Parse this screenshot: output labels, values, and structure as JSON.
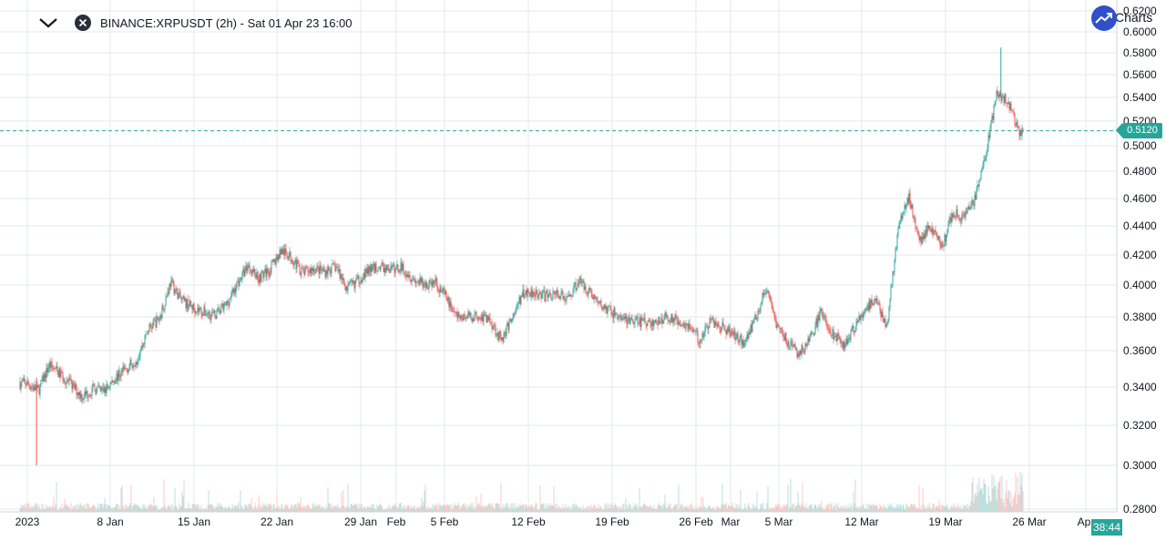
{
  "header": {
    "title": "BINANCE:XRPUSDT (2h) - Sat 01 Apr 23 16:00",
    "collapse_icon": "chevron-down-icon",
    "close_icon": "close-circle-icon"
  },
  "brand": {
    "text": "Charts",
    "logo_icon": "trend-up-logo-icon"
  },
  "price_tag": "0.5120",
  "timer": "38:44",
  "colors": {
    "up": "#26a69a",
    "down": "#ef5350",
    "up_volume": "#b2dfdb",
    "down_volume": "#f8c6c4",
    "grid": "#e6e7ea",
    "brand": "#3050c8"
  },
  "chart_data": {
    "type": "candlestick",
    "symbol": "BINANCE:XRPUSDT",
    "interval": "2h",
    "y_scale": "log",
    "ylim": [
      0.278,
      0.62
    ],
    "grid": true,
    "y_ticks": [
      "0.6200",
      "0.6000",
      "0.5800",
      "0.5600",
      "0.5400",
      "0.5200",
      "0.5000",
      "0.4800",
      "0.4600",
      "0.4400",
      "0.4200",
      "0.4000",
      "0.3800",
      "0.3600",
      "0.3400",
      "0.3200",
      "0.3000",
      "0.2800"
    ],
    "x_ticks": [
      "2023",
      "8 Jan",
      "15 Jan",
      "22 Jan",
      "29 Jan",
      "Feb",
      "5 Feb",
      "12 Feb",
      "19 Feb",
      "26 Feb",
      "Mar",
      "5 Mar",
      "12 Mar",
      "19 Mar",
      "26 Mar",
      "Apr"
    ],
    "last_price": 0.512,
    "close_path": [
      [
        "2023-01-01",
        0.342
      ],
      [
        "2023-01-02",
        0.338
      ],
      [
        "2023-01-03",
        0.352
      ],
      [
        "2023-01-04",
        0.347
      ],
      [
        "2023-01-05",
        0.341
      ],
      [
        "2023-01-06",
        0.335
      ],
      [
        "2023-01-07",
        0.339
      ],
      [
        "2023-01-08",
        0.338
      ],
      [
        "2023-01-09",
        0.345
      ],
      [
        "2023-01-10",
        0.35
      ],
      [
        "2023-01-11",
        0.356
      ],
      [
        "2023-01-12",
        0.373
      ],
      [
        "2023-01-13",
        0.379
      ],
      [
        "2023-01-14",
        0.402
      ],
      [
        "2023-01-15",
        0.39
      ],
      [
        "2023-01-16",
        0.386
      ],
      [
        "2023-01-17",
        0.383
      ],
      [
        "2023-01-18",
        0.381
      ],
      [
        "2023-01-19",
        0.387
      ],
      [
        "2023-01-20",
        0.4
      ],
      [
        "2023-01-21",
        0.413
      ],
      [
        "2023-01-22",
        0.405
      ],
      [
        "2023-01-23",
        0.41
      ],
      [
        "2023-01-24",
        0.423
      ],
      [
        "2023-01-25",
        0.418
      ],
      [
        "2023-01-26",
        0.408
      ],
      [
        "2023-01-27",
        0.411
      ],
      [
        "2023-01-28",
        0.409
      ],
      [
        "2023-01-29",
        0.412
      ],
      [
        "2023-01-30",
        0.398
      ],
      [
        "2023-01-31",
        0.403
      ],
      [
        "2023-02-01",
        0.41
      ],
      [
        "2023-02-02",
        0.412
      ],
      [
        "2023-02-03",
        0.41
      ],
      [
        "2023-02-04",
        0.412
      ],
      [
        "2023-02-05",
        0.404
      ],
      [
        "2023-02-06",
        0.4
      ],
      [
        "2023-02-07",
        0.402
      ],
      [
        "2023-02-08",
        0.392
      ],
      [
        "2023-02-09",
        0.38
      ],
      [
        "2023-02-10",
        0.38
      ],
      [
        "2023-02-11",
        0.381
      ],
      [
        "2023-02-12",
        0.378
      ],
      [
        "2023-02-13",
        0.366
      ],
      [
        "2023-02-14",
        0.38
      ],
      [
        "2023-02-15",
        0.395
      ],
      [
        "2023-02-16",
        0.396
      ],
      [
        "2023-02-17",
        0.393
      ],
      [
        "2023-02-18",
        0.395
      ],
      [
        "2023-02-19",
        0.391
      ],
      [
        "2023-02-20",
        0.403
      ],
      [
        "2023-02-21",
        0.396
      ],
      [
        "2023-02-22",
        0.387
      ],
      [
        "2023-02-23",
        0.383
      ],
      [
        "2023-02-24",
        0.379
      ],
      [
        "2023-02-25",
        0.377
      ],
      [
        "2023-02-26",
        0.377
      ],
      [
        "2023-02-27",
        0.376
      ],
      [
        "2023-02-28",
        0.38
      ],
      [
        "2023-03-01",
        0.378
      ],
      [
        "2023-03-02",
        0.375
      ],
      [
        "2023-03-03",
        0.366
      ],
      [
        "2023-03-04",
        0.378
      ],
      [
        "2023-03-05",
        0.374
      ],
      [
        "2023-03-06",
        0.37
      ],
      [
        "2023-03-07",
        0.365
      ],
      [
        "2023-03-08",
        0.378
      ],
      [
        "2023-03-09",
        0.398
      ],
      [
        "2023-03-10",
        0.375
      ],
      [
        "2023-03-11",
        0.365
      ],
      [
        "2023-03-12",
        0.358
      ],
      [
        "2023-03-13",
        0.366
      ],
      [
        "2023-03-14",
        0.383
      ],
      [
        "2023-03-15",
        0.371
      ],
      [
        "2023-03-16",
        0.362
      ],
      [
        "2023-03-17",
        0.373
      ],
      [
        "2023-03-18",
        0.385
      ],
      [
        "2023-03-19",
        0.39
      ],
      [
        "2023-03-20",
        0.375
      ],
      [
        "2023-03-21",
        0.439
      ],
      [
        "2023-03-22",
        0.46
      ],
      [
        "2023-03-23",
        0.43
      ],
      [
        "2023-03-24",
        0.44
      ],
      [
        "2023-03-25",
        0.425
      ],
      [
        "2023-03-26",
        0.45
      ],
      [
        "2023-03-27",
        0.445
      ],
      [
        "2023-03-28",
        0.46
      ],
      [
        "2023-03-29",
        0.495
      ],
      [
        "2023-03-30",
        0.545
      ],
      [
        "2023-03-31",
        0.535
      ],
      [
        "2023-04-01",
        0.512
      ]
    ],
    "notable_extremes": {
      "low_wick": 0.3,
      "high_wick": 0.585
    },
    "volume": {
      "shown": true,
      "placement": "bottom overlay",
      "scale": "relative"
    }
  }
}
